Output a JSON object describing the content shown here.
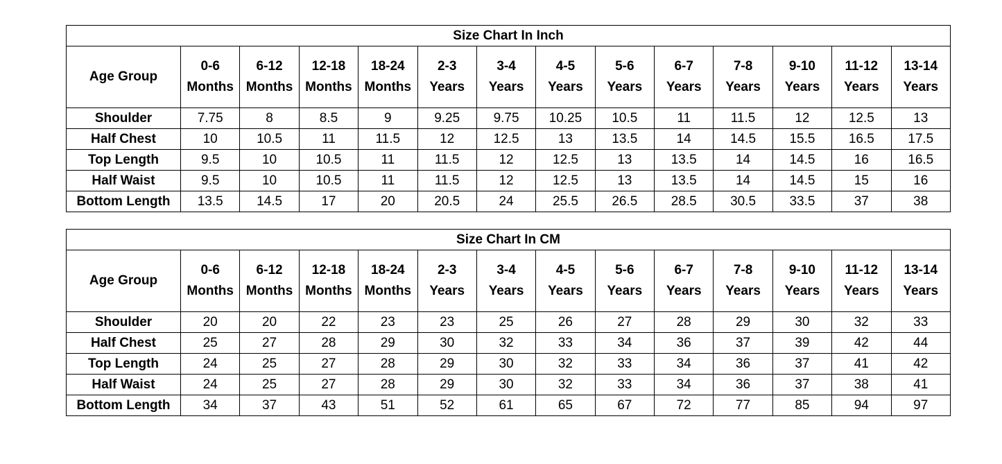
{
  "row_header_label": "Age Group",
  "age_groups": [
    {
      "range": "0-6",
      "unit": "Months"
    },
    {
      "range": "6-12",
      "unit": "Months"
    },
    {
      "range": "12-18",
      "unit": "Months"
    },
    {
      "range": "18-24",
      "unit": "Months"
    },
    {
      "range": "2-3",
      "unit": "Years"
    },
    {
      "range": "3-4",
      "unit": "Years"
    },
    {
      "range": "4-5",
      "unit": "Years"
    },
    {
      "range": "5-6",
      "unit": "Years"
    },
    {
      "range": "6-7",
      "unit": "Years"
    },
    {
      "range": "7-8",
      "unit": "Years"
    },
    {
      "range": "9-10",
      "unit": "Years"
    },
    {
      "range": "11-12",
      "unit": "Years"
    },
    {
      "range": "13-14",
      "unit": "Years"
    }
  ],
  "tables": [
    {
      "title": "Size Chart In Inch",
      "rows": [
        {
          "label": "Shoulder",
          "values": [
            "7.75",
            "8",
            "8.5",
            "9",
            "9.25",
            "9.75",
            "10.25",
            "10.5",
            "11",
            "11.5",
            "12",
            "12.5",
            "13"
          ]
        },
        {
          "label": "Half Chest",
          "values": [
            "10",
            "10.5",
            "11",
            "11.5",
            "12",
            "12.5",
            "13",
            "13.5",
            "14",
            "14.5",
            "15.5",
            "16.5",
            "17.5"
          ]
        },
        {
          "label": "Top Length",
          "values": [
            "9.5",
            "10",
            "10.5",
            "11",
            "11.5",
            "12",
            "12.5",
            "13",
            "13.5",
            "14",
            "14.5",
            "16",
            "16.5"
          ]
        },
        {
          "label": "Half Waist",
          "values": [
            "9.5",
            "10",
            "10.5",
            "11",
            "11.5",
            "12",
            "12.5",
            "13",
            "13.5",
            "14",
            "14.5",
            "15",
            "16"
          ]
        },
        {
          "label": "Bottom Length",
          "values": [
            "13.5",
            "14.5",
            "17",
            "20",
            "20.5",
            "24",
            "25.5",
            "26.5",
            "28.5",
            "30.5",
            "33.5",
            "37",
            "38"
          ]
        }
      ]
    },
    {
      "title": "Size Chart In CM",
      "rows": [
        {
          "label": "Shoulder",
          "values": [
            "20",
            "20",
            "22",
            "23",
            "23",
            "25",
            "26",
            "27",
            "28",
            "29",
            "30",
            "32",
            "33"
          ]
        },
        {
          "label": "Half Chest",
          "values": [
            "25",
            "27",
            "28",
            "29",
            "30",
            "32",
            "33",
            "34",
            "36",
            "37",
            "39",
            "42",
            "44"
          ]
        },
        {
          "label": "Top Length",
          "values": [
            "24",
            "25",
            "27",
            "28",
            "29",
            "30",
            "32",
            "33",
            "34",
            "36",
            "37",
            "41",
            "42"
          ]
        },
        {
          "label": "Half Waist",
          "values": [
            "24",
            "25",
            "27",
            "28",
            "29",
            "30",
            "32",
            "33",
            "34",
            "36",
            "37",
            "38",
            "41"
          ]
        },
        {
          "label": "Bottom Length",
          "values": [
            "34",
            "37",
            "43",
            "51",
            "52",
            "61",
            "65",
            "67",
            "72",
            "77",
            "85",
            "94",
            "97"
          ]
        }
      ]
    }
  ]
}
